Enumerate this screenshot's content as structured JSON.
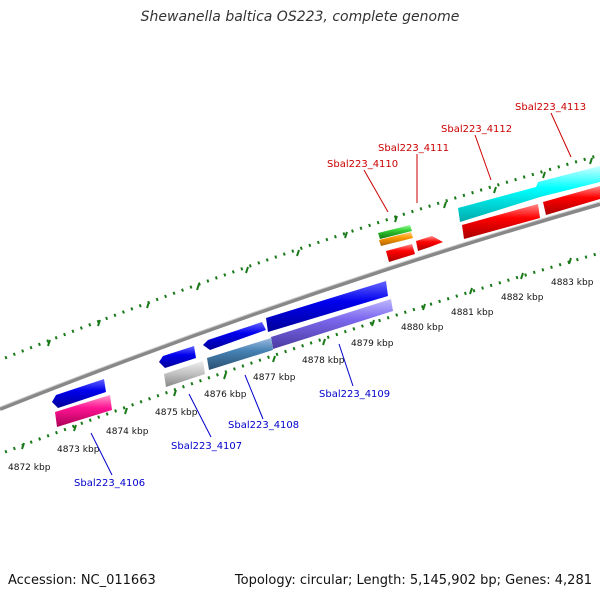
{
  "title": "Shewanella baltica OS223, complete genome",
  "footer": {
    "accession": "Accession: NC_011663",
    "summary": "Topology: circular; Length: 5,145,902 bp; Genes: 4,281"
  },
  "ruler_labels": [
    "4872 kbp",
    "4873 kbp",
    "4874 kbp",
    "4875 kbp",
    "4876 kbp",
    "4877 kbp",
    "4878 kbp",
    "4879 kbp",
    "4880 kbp",
    "4881 kbp",
    "4882 kbp",
    "4883 kbp"
  ],
  "gene_labels_forward": [
    "Sbal223_4110",
    "Sbal223_4111",
    "Sbal223_4112",
    "Sbal223_4113"
  ],
  "gene_labels_reverse": [
    "Sbal223_4106",
    "Sbal223_4107",
    "Sbal223_4108",
    "Sbal223_4109"
  ],
  "colors": {
    "forward_label": "#cc0000",
    "reverse_label": "#0000cc",
    "backbone": "#888888",
    "tick": "#1a7a1a",
    "blue": "#0000ee",
    "cyan": "#00ffff",
    "red": "#ff0000",
    "magenta": "#ff1493",
    "gray": "#c0c0c0",
    "steelblue": "#4682b4",
    "mediumpurple": "#7b68ee",
    "green": "#33cc33",
    "orange": "#ff9900"
  }
}
